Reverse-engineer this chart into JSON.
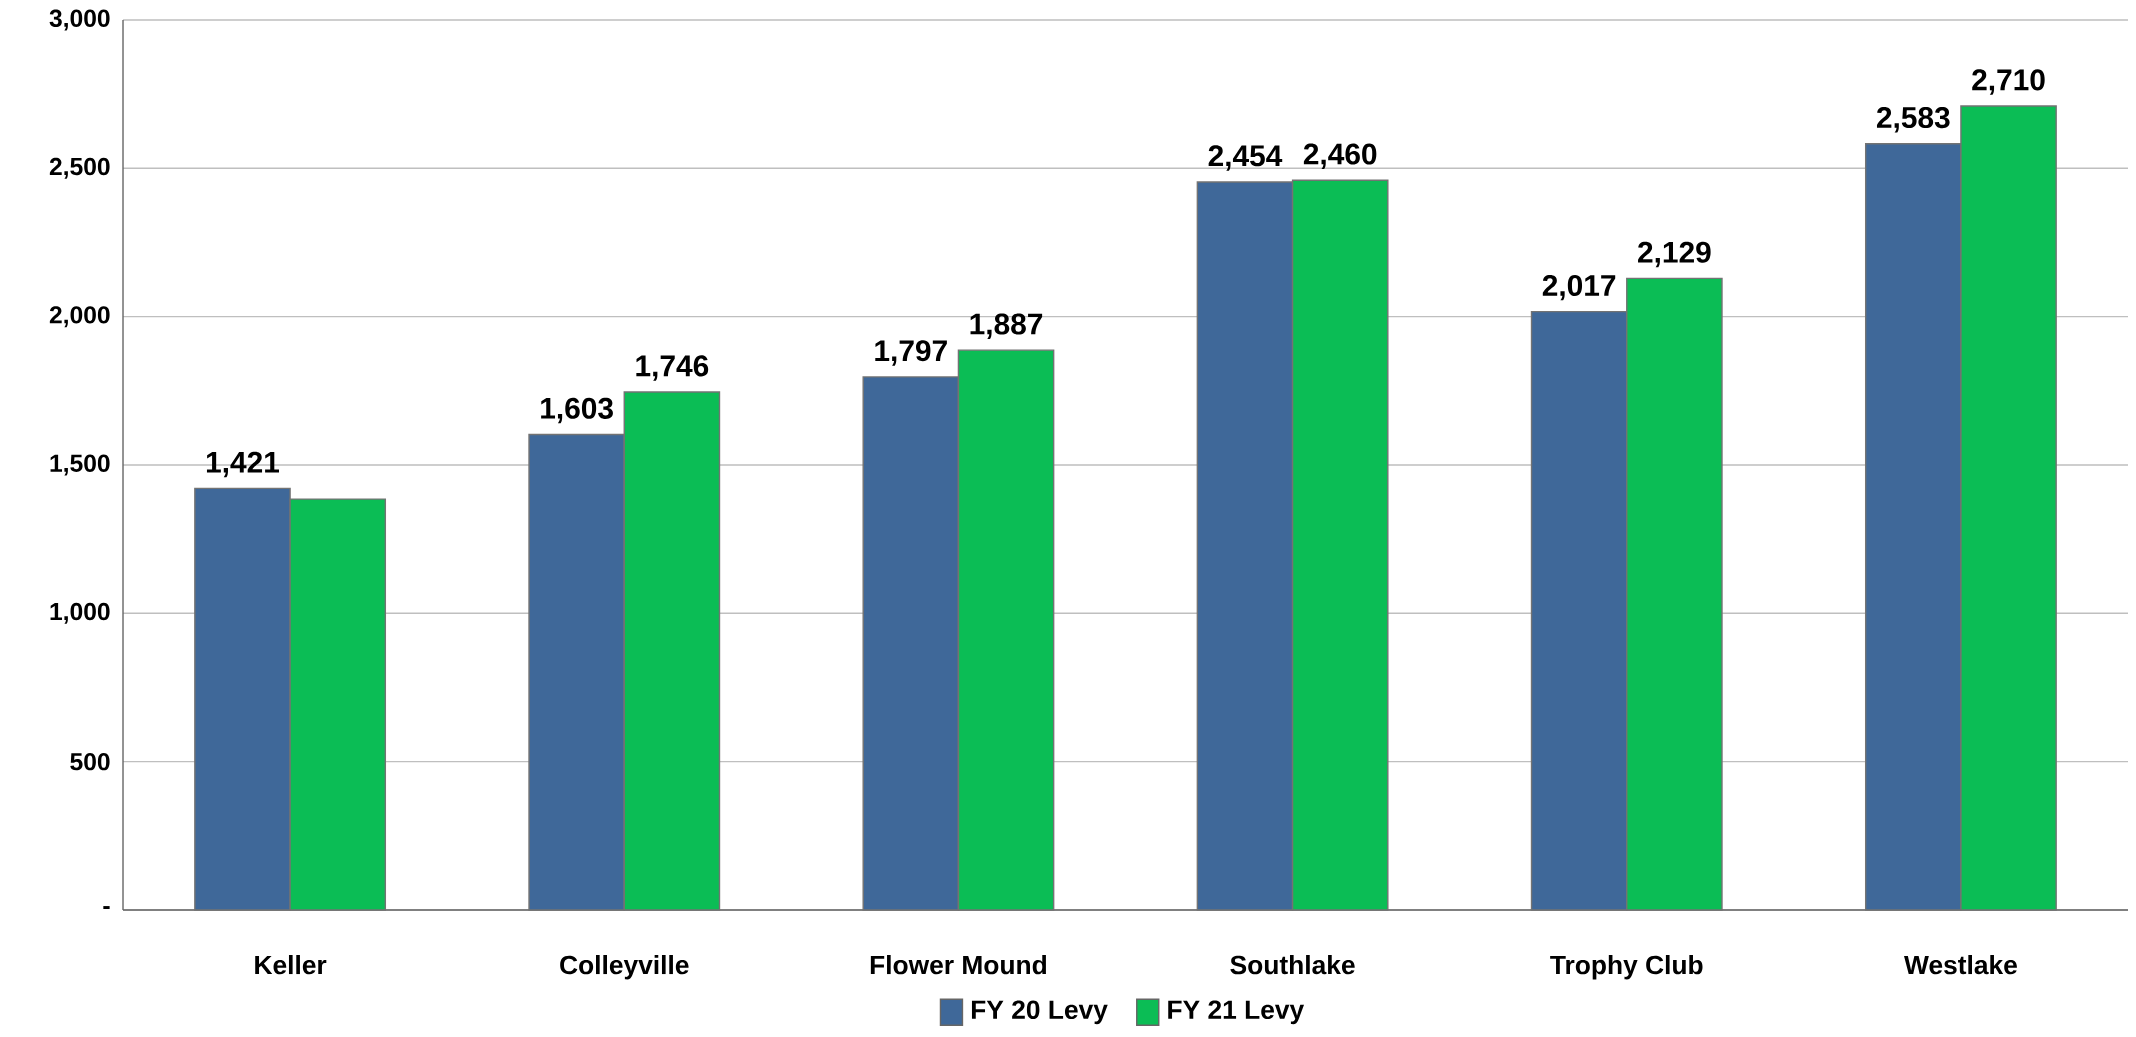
{
  "chart_data": {
    "type": "bar",
    "categories": [
      "Keller",
      "Colleyville",
      "Flower Mound",
      "Southlake",
      "Trophy Club",
      "Westlake"
    ],
    "series": [
      {
        "name": "FY 20 Levy",
        "color": "#3f6899",
        "values": [
          1421,
          1603,
          1797,
          2454,
          2017,
          2583
        ],
        "value_labels": [
          "1,421",
          "1,603",
          "1,797",
          "2,454",
          "2,017",
          "2,583"
        ]
      },
      {
        "name": "FY 21 Levy",
        "color": "#0bbd55",
        "values": [
          1385,
          1746,
          1887,
          2460,
          2129,
          2710
        ],
        "value_labels": [
          null,
          "1,746",
          "1,887",
          "2,460",
          "2,129",
          "2,710"
        ]
      }
    ],
    "ylim": [
      0,
      3000
    ],
    "yticks": [
      {
        "value": 0,
        "label": "-"
      },
      500,
      {
        "value": 1000,
        "label": "1,000"
      },
      {
        "value": 1500,
        "label": "1,500"
      },
      {
        "value": 2000,
        "label": "2,000"
      },
      {
        "value": 2500,
        "label": "2,500"
      },
      {
        "value": 3000,
        "label": "3,000"
      }
    ],
    "grid": "y",
    "legend": "bottom"
  }
}
